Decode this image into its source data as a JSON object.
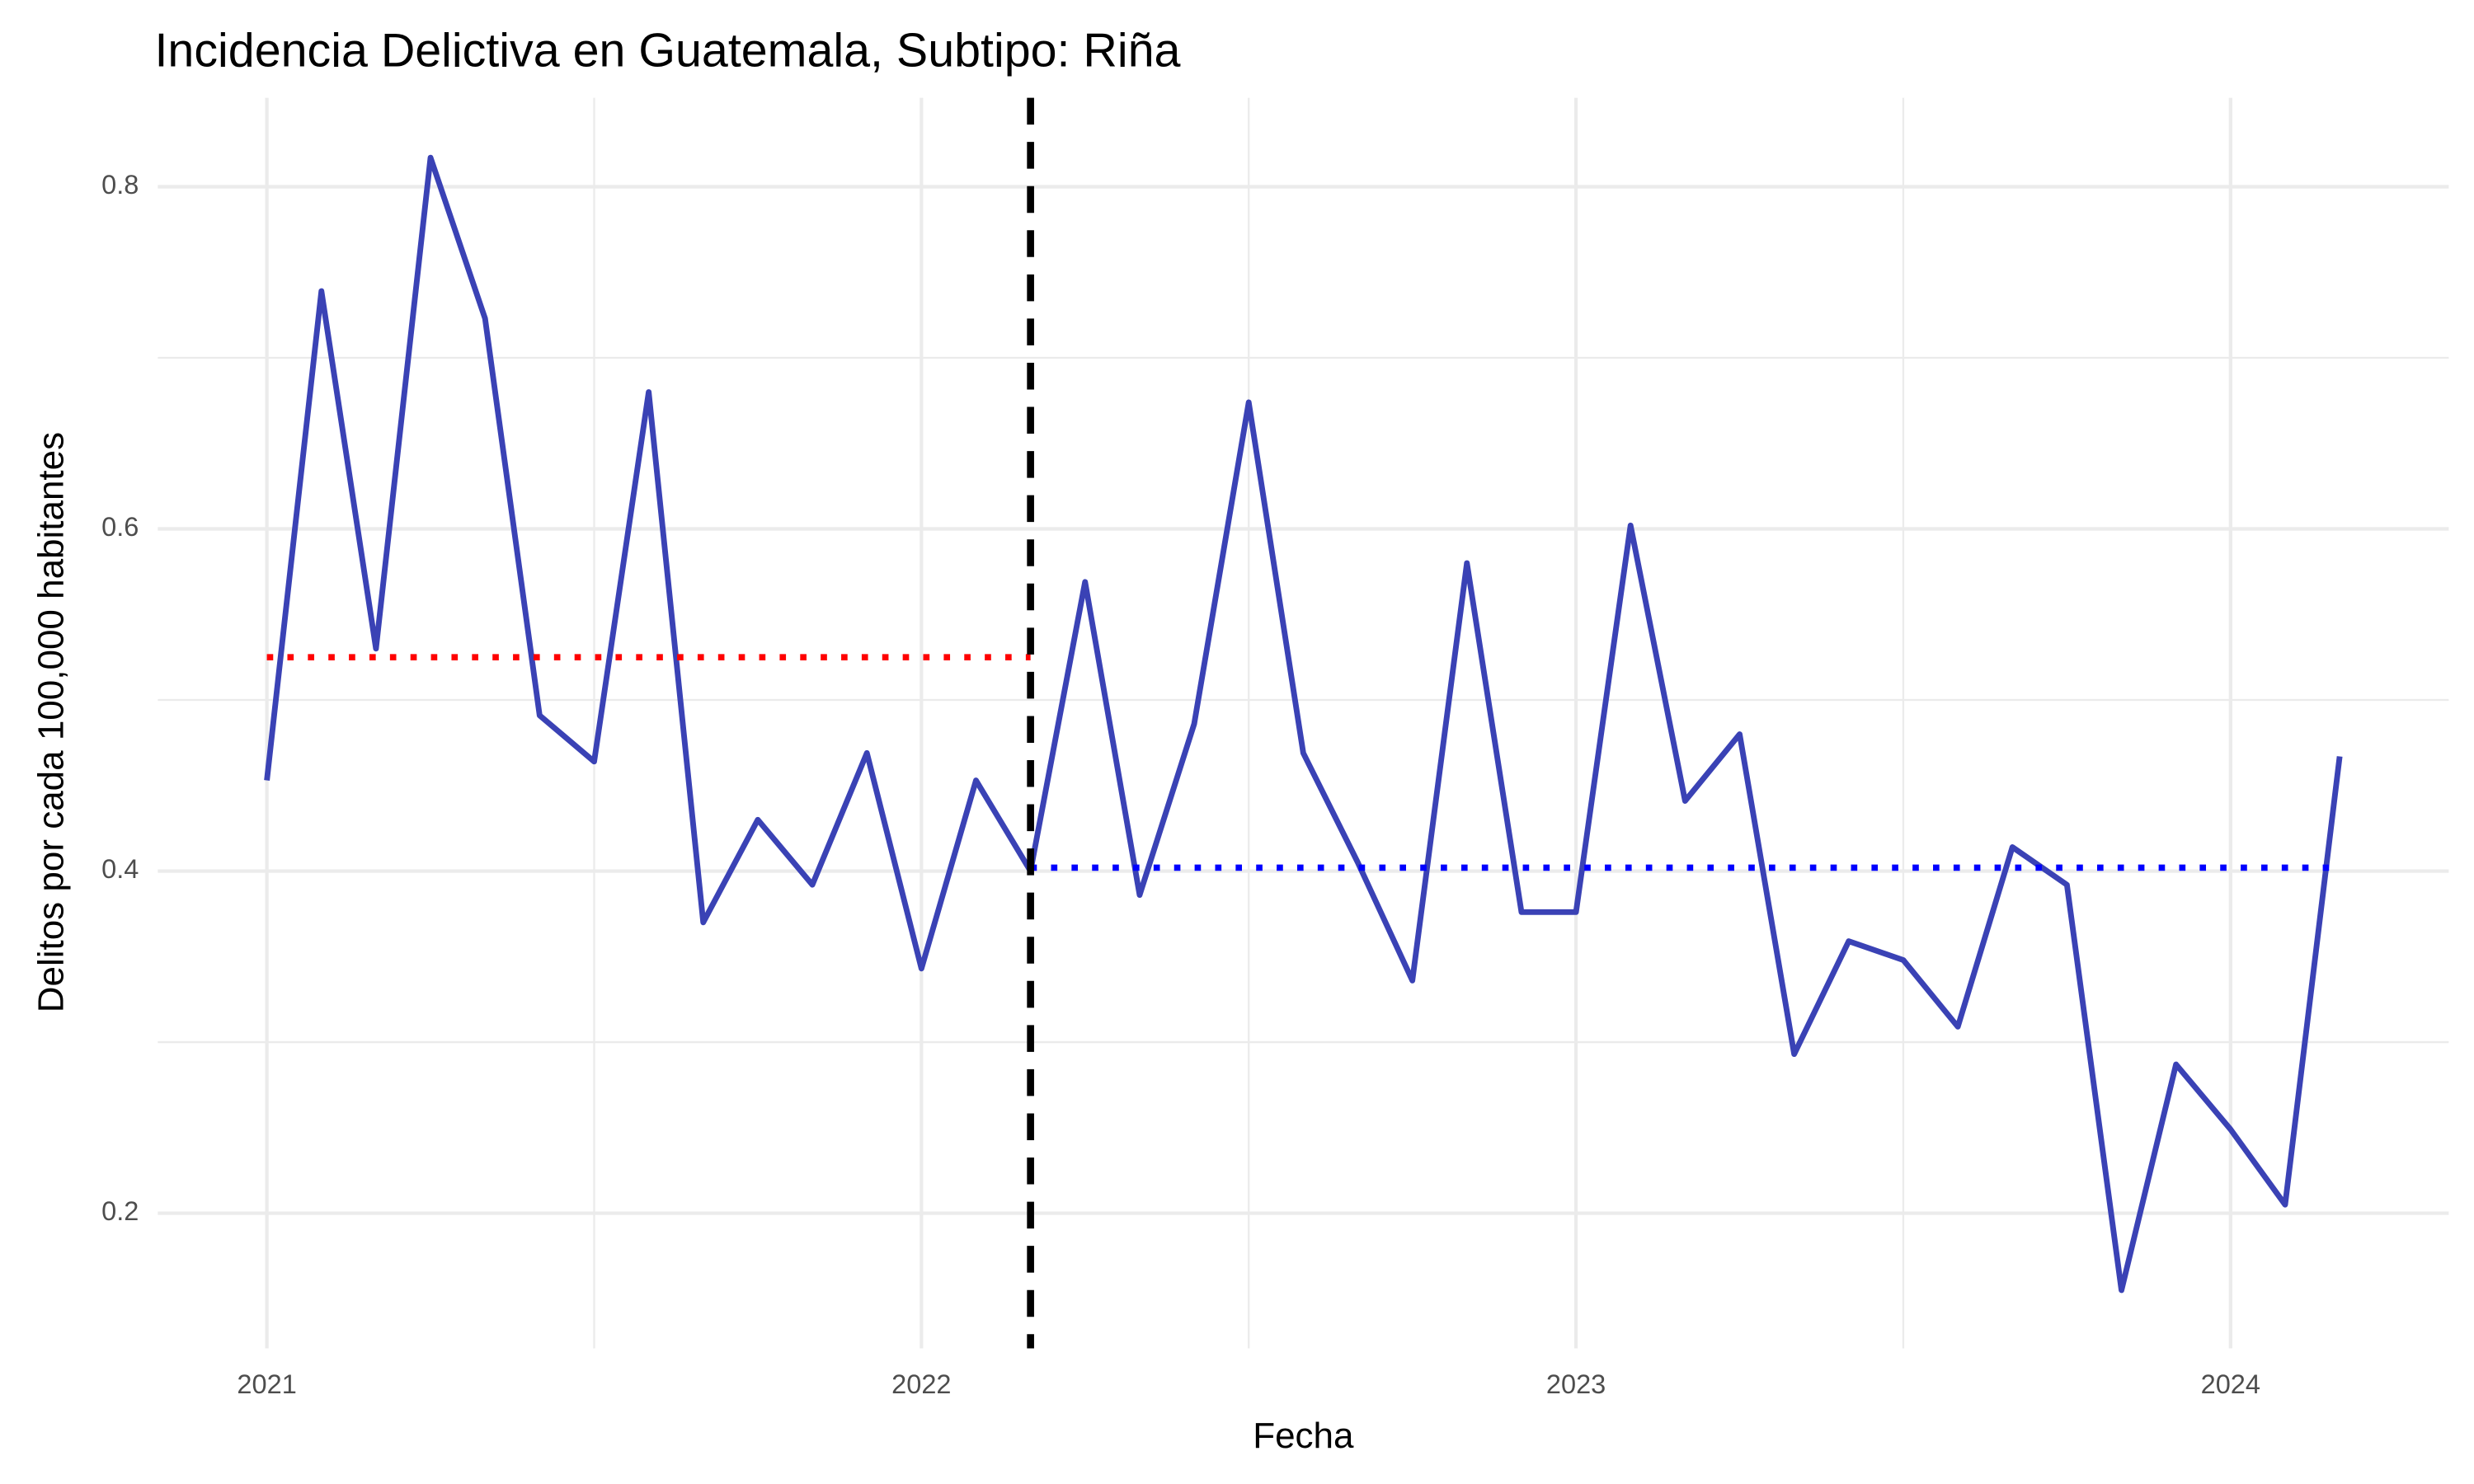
{
  "chart_data": {
    "type": "line",
    "title": "Incidencia Delictiva en Guatemala, Subtipo: Riña",
    "x_label": "Fecha",
    "y_label": "Delitos por cada 100,000 habitantes",
    "x": [
      "2021-01",
      "2021-02",
      "2021-03",
      "2021-04",
      "2021-05",
      "2021-06",
      "2021-07",
      "2021-08",
      "2021-09",
      "2021-10",
      "2021-11",
      "2021-12",
      "2022-01",
      "2022-02",
      "2022-03",
      "2022-04",
      "2022-05",
      "2022-06",
      "2022-07",
      "2022-08",
      "2022-09",
      "2022-10",
      "2022-11",
      "2022-12",
      "2023-01",
      "2023-02",
      "2023-03",
      "2023-04",
      "2023-05",
      "2023-06",
      "2023-07",
      "2023-08",
      "2023-09",
      "2023-10",
      "2023-11",
      "2023-12",
      "2024-01",
      "2024-02",
      "2024-03"
    ],
    "values": [
      0.453,
      0.739,
      0.53,
      0.817,
      0.723,
      0.491,
      0.464,
      0.68,
      0.37,
      0.43,
      0.392,
      0.469,
      0.343,
      0.453,
      0.4,
      0.569,
      0.386,
      0.486,
      0.674,
      0.469,
      0.405,
      0.336,
      0.58,
      0.376,
      0.376,
      0.602,
      0.441,
      0.48,
      0.293,
      0.359,
      0.348,
      0.309,
      0.414,
      0.392,
      0.155,
      0.287,
      0.249,
      0.205,
      0.467
    ],
    "color": "#3a42b5",
    "xlim": [
      "2020-11",
      "2024-05"
    ],
    "xticks": [
      {
        "value": "2021-01",
        "label": "2021"
      },
      {
        "value": "2022-01",
        "label": "2022"
      },
      {
        "value": "2023-01",
        "label": "2023"
      },
      {
        "value": "2024-01",
        "label": "2024"
      }
    ],
    "ylim": [
      0.121,
      0.852
    ],
    "yticks": [
      0.2,
      0.4,
      0.6,
      0.8
    ],
    "grid": true,
    "reference_lines": [
      {
        "y": 0.525,
        "from": "2021-01",
        "to": "2022-03",
        "color": "#ff0000"
      },
      {
        "y": 0.402,
        "from": "2022-03",
        "to": "2024-03",
        "color": "#0000ff"
      }
    ],
    "vline": {
      "x": "2022-03",
      "color": "#000000"
    }
  }
}
